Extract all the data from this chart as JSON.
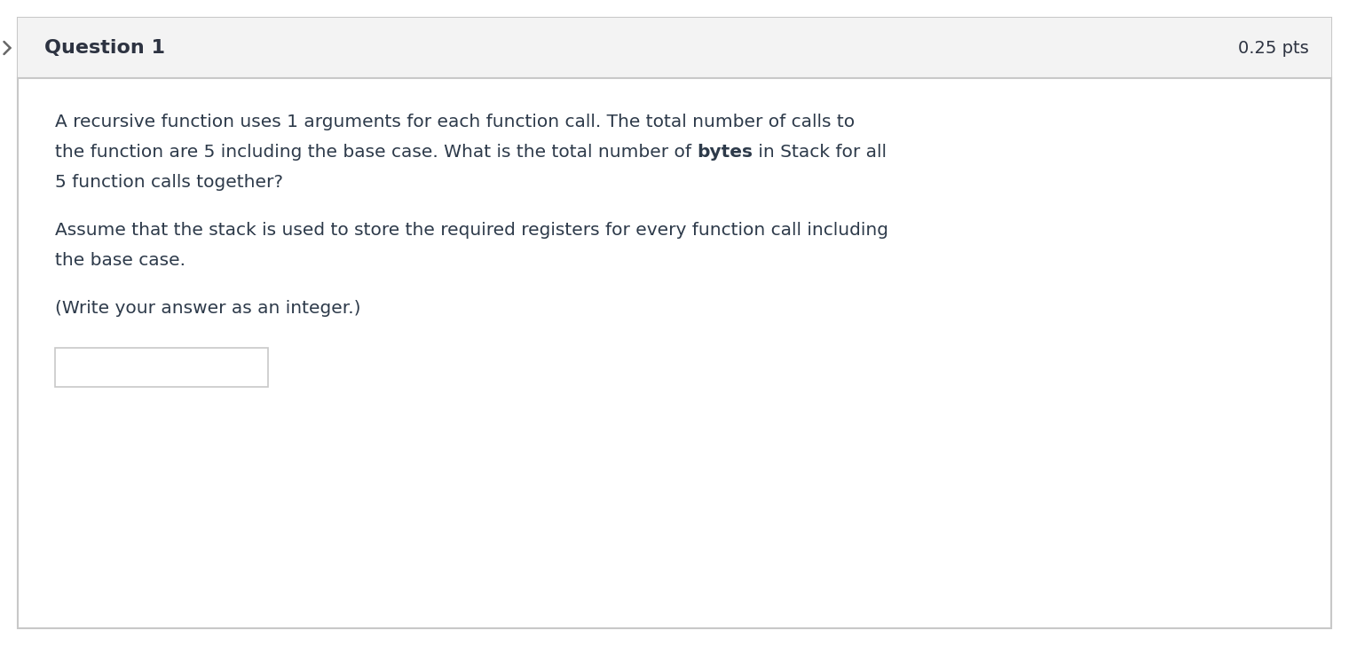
{
  "bg_color": "#ffffff",
  "outer_border_color": "#c8c8c8",
  "header_bg_color": "#f3f3f3",
  "header_text": "Question 1",
  "header_pts": "0.25 pts",
  "header_text_color": "#2d3341",
  "header_fontsize": 16,
  "header_pts_fontsize": 14,
  "body_text_color": "#2d3a4a",
  "body_fontsize": 14.5,
  "line1": "A recursive function uses 1 arguments for each function call. The total number of calls to",
  "line2_normal1": "the function are 5 including the base case. What is the total number of ",
  "line2_bold": "bytes",
  "line2_normal2": " in Stack for all",
  "line3": "5 function calls together?",
  "line4": "Assume that the stack is used to store the required registers for every function call including",
  "line5": "the base case.",
  "line6": "(Write your answer as an integer.)",
  "answer_box_color": "#c8c8c8",
  "answer_box_bg": "#ffffff",
  "left_arrow_color": "#666666",
  "separator_color": "#c8c8c8",
  "fig_width": 15.2,
  "fig_height": 7.28,
  "dpi": 100
}
